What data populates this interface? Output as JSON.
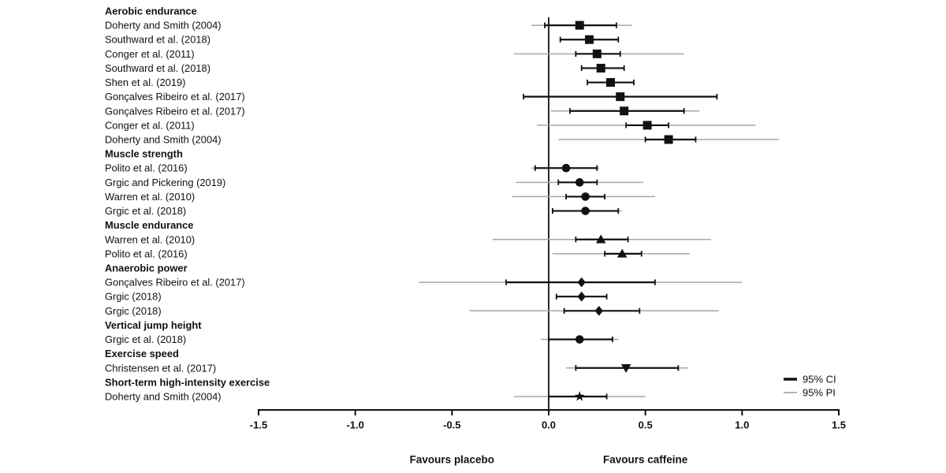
{
  "chart_data": {
    "type": "forest",
    "title": "",
    "xlabel": "",
    "xlim": [
      -1.5,
      1.5
    ],
    "grid": false,
    "legend_position": "bottom-right",
    "axis": {
      "tick_values": [
        -1.5,
        -1.0,
        -0.5,
        0.0,
        0.5,
        1.0,
        1.5
      ],
      "tick_labels": [
        "-1.5",
        "-1.0",
        "-0.5",
        "0.0",
        "0.5",
        "1.0",
        "1.5"
      ]
    },
    "direction_labels": {
      "left_text": "Favours placebo",
      "left_at": -0.5,
      "right_text": "Favours caffeine",
      "right_at": 0.5
    },
    "legend": [
      {
        "label": "95% CI",
        "color": "#111111",
        "weight": "thick"
      },
      {
        "label": "95% PI",
        "color": "#a6a6a6",
        "weight": "thin"
      }
    ],
    "colors": {
      "ci": "#111111",
      "pi": "#a6a6a6",
      "text": "#111111",
      "background": "#ffffff"
    },
    "groups": [
      {
        "label": "Aerobic endurance",
        "marker": "square",
        "studies": [
          {
            "label": "Doherty and Smith (2004)",
            "est": 0.16,
            "ci": [
              -0.02,
              0.35
            ],
            "pi": [
              -0.09,
              0.43
            ]
          },
          {
            "label": "Southward et al. (2018)",
            "est": 0.21,
            "ci": [
              0.06,
              0.36
            ],
            "pi": null
          },
          {
            "label": "Conger et al. (2011)",
            "est": 0.25,
            "ci": [
              0.14,
              0.37
            ],
            "pi": [
              -0.18,
              0.7
            ]
          },
          {
            "label": "Southward et al. (2018)",
            "est": 0.27,
            "ci": [
              0.17,
              0.39
            ],
            "pi": null
          },
          {
            "label": "Shen et al. (2019)",
            "est": 0.32,
            "ci": [
              0.2,
              0.44
            ],
            "pi": null
          },
          {
            "label": "Gonçalves Ribeiro et al. (2017)",
            "est": 0.37,
            "ci": [
              -0.13,
              0.87
            ],
            "pi": null
          },
          {
            "label": "Gonçalves Ribeiro et al. (2017)",
            "est": 0.39,
            "ci": [
              0.11,
              0.7
            ],
            "pi": [
              0.01,
              0.78
            ]
          },
          {
            "label": "Conger et al. (2011)",
            "est": 0.51,
            "ci": [
              0.4,
              0.62
            ],
            "pi": [
              -0.06,
              1.07
            ]
          },
          {
            "label": "Doherty and Smith (2004)",
            "est": 0.62,
            "ci": [
              0.5,
              0.76
            ],
            "pi": [
              0.05,
              1.19
            ]
          }
        ]
      },
      {
        "label": "Muscle strength",
        "marker": "circle",
        "studies": [
          {
            "label": "Polito et al. (2016)",
            "est": 0.09,
            "ci": [
              -0.07,
              0.25
            ],
            "pi": [
              -0.09,
              0.26
            ]
          },
          {
            "label": "Grgic and Pickering (2019)",
            "est": 0.16,
            "ci": [
              0.05,
              0.25
            ],
            "pi": [
              -0.17,
              0.49
            ]
          },
          {
            "label": "Warren et al. (2010)",
            "est": 0.19,
            "ci": [
              0.09,
              0.29
            ],
            "pi": [
              -0.19,
              0.55
            ]
          },
          {
            "label": "Grgic et al. (2018)",
            "est": 0.19,
            "ci": [
              0.02,
              0.36
            ],
            "pi": [
              0.02,
              0.38
            ]
          }
        ]
      },
      {
        "label": "Muscle endurance",
        "marker": "triangle-up",
        "studies": [
          {
            "label": "Warren et al. (2010)",
            "est": 0.27,
            "ci": [
              0.14,
              0.41
            ],
            "pi": [
              -0.29,
              0.84
            ]
          },
          {
            "label": "Polito et al. (2016)",
            "est": 0.38,
            "ci": [
              0.29,
              0.48
            ],
            "pi": [
              0.02,
              0.73
            ]
          }
        ]
      },
      {
        "label": "Anaerobic power",
        "marker": "diamond",
        "studies": [
          {
            "label": "Gonçalves Ribeiro et al. (2017)",
            "est": 0.17,
            "ci": [
              -0.22,
              0.55
            ],
            "pi": [
              -0.67,
              1.0
            ]
          },
          {
            "label": "Grgic (2018)",
            "est": 0.17,
            "ci": [
              0.04,
              0.3
            ],
            "pi": null
          },
          {
            "label": "Grgic (2018)",
            "est": 0.26,
            "ci": [
              0.08,
              0.47
            ],
            "pi": [
              -0.41,
              0.88
            ]
          }
        ]
      },
      {
        "label": "Vertical jump height",
        "marker": "circle",
        "studies": [
          {
            "label": "Grgic et al. (2018)",
            "est": 0.16,
            "ci": [
              0.0,
              0.33
            ],
            "pi": [
              -0.04,
              0.36
            ]
          }
        ]
      },
      {
        "label": "Exercise speed",
        "marker": "triangle-down",
        "studies": [
          {
            "label": "Christensen et al. (2017)",
            "est": 0.4,
            "ci": [
              0.14,
              0.67
            ],
            "pi": [
              0.09,
              0.72
            ]
          }
        ]
      },
      {
        "label": "Short-term high-intensity exercise",
        "marker": "star",
        "studies": [
          {
            "label": "Doherty and Smith (2004)",
            "est": 0.16,
            "ci": [
              0.0,
              0.3
            ],
            "pi": [
              -0.18,
              0.5
            ]
          }
        ]
      }
    ]
  }
}
